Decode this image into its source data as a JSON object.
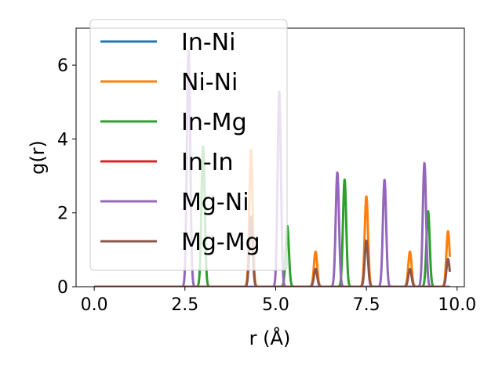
{
  "chart_data": {
    "type": "line",
    "xlabel": "r (Å)",
    "ylabel": "g(r)",
    "xlim": [
      -0.5,
      10.2
    ],
    "ylim": [
      0,
      7.0
    ],
    "x_ticks": [
      "0.0",
      "2.5",
      "5.0",
      "7.5",
      "10.0"
    ],
    "x_tick_values": [
      0,
      2.5,
      5.0,
      7.5,
      10.0
    ],
    "y_ticks": [
      "0",
      "2",
      "4",
      "6"
    ],
    "y_tick_values": [
      0,
      2,
      4,
      6
    ],
    "grid": false,
    "legend_position": "top-left",
    "peak_width": 0.045,
    "x_range": [
      0,
      9.8
    ],
    "series": [
      {
        "name": "In-Ni",
        "color": "#1f77b4",
        "peaks": []
      },
      {
        "name": "Ni-Ni",
        "color": "#ff7f0e",
        "peaks": [
          [
            4.32,
            3.7
          ],
          [
            6.1,
            0.95
          ],
          [
            7.5,
            2.45
          ],
          [
            8.7,
            0.95
          ],
          [
            9.75,
            1.5
          ]
        ]
      },
      {
        "name": "In-Mg",
        "color": "#2ca02c",
        "peaks": [
          [
            3.0,
            3.8
          ],
          [
            5.32,
            1.65
          ],
          [
            6.9,
            2.9
          ],
          [
            9.2,
            2.05
          ]
        ]
      },
      {
        "name": "In-In",
        "color": "#d62728",
        "peaks": []
      },
      {
        "name": "Mg-Ni",
        "color": "#9467bd",
        "peaks": [
          [
            2.6,
            6.4
          ],
          [
            5.1,
            5.3
          ],
          [
            6.7,
            3.1
          ],
          [
            8.0,
            2.9
          ],
          [
            9.1,
            3.35
          ]
        ]
      },
      {
        "name": "Mg-Mg",
        "color": "#8c564b",
        "peaks": [
          [
            4.32,
            1.9
          ],
          [
            6.1,
            0.48
          ],
          [
            7.5,
            1.25
          ],
          [
            8.7,
            0.48
          ],
          [
            9.75,
            0.75
          ]
        ]
      }
    ]
  }
}
